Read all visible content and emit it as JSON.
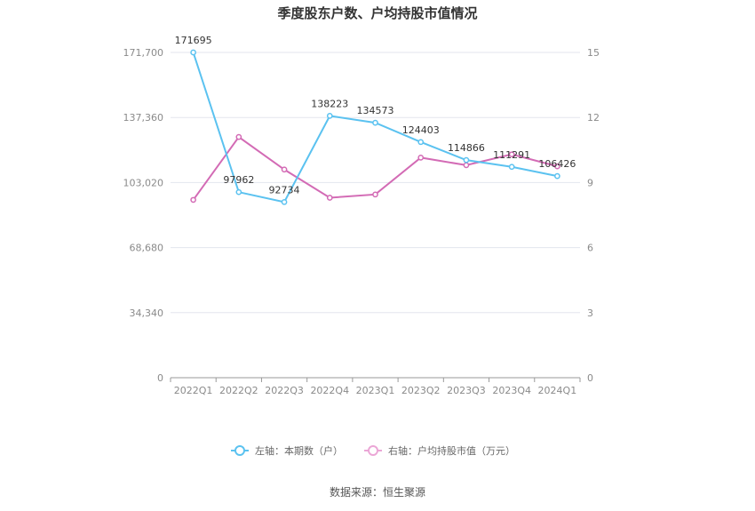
{
  "chart_data": {
    "type": "line",
    "title": "季度股东户数、户均持股市值情况",
    "categories": [
      "2022Q1",
      "2022Q2",
      "2022Q3",
      "2022Q4",
      "2023Q1",
      "2023Q2",
      "2023Q3",
      "2023Q4",
      "2024Q1"
    ],
    "left_axis": {
      "ylim": [
        0,
        171700
      ],
      "ticks": [
        "0",
        "34,340",
        "68,680",
        "103,020",
        "137,360",
        "171,700"
      ],
      "tick_values": [
        0,
        34340,
        68680,
        103020,
        137360,
        171700
      ]
    },
    "right_axis": {
      "ylim": [
        0,
        15
      ],
      "ticks": [
        "0",
        "3",
        "6",
        "9",
        "12",
        "15"
      ],
      "tick_values": [
        0,
        3,
        6,
        9,
        12,
        15
      ]
    },
    "series": [
      {
        "name": "左轴：本期数（户）",
        "axis": "left",
        "color": "#5bc2f0",
        "values": [
          171695,
          97962,
          92734,
          138223,
          134573,
          124403,
          114866,
          111291,
          106426
        ],
        "labels": [
          "171695",
          "97962",
          "92734",
          "138223",
          "134573",
          "124403",
          "114866",
          "111291",
          "106426"
        ]
      },
      {
        "name": "右轴：户均持股市值（万元）",
        "axis": "right",
        "color": "#d36bb5",
        "values": [
          8.2,
          11.1,
          9.6,
          8.3,
          8.45,
          10.15,
          9.8,
          10.3,
          9.75
        ]
      }
    ],
    "grid": true,
    "legend_position": "bottom"
  },
  "source_text": "数据来源：恒生聚源"
}
